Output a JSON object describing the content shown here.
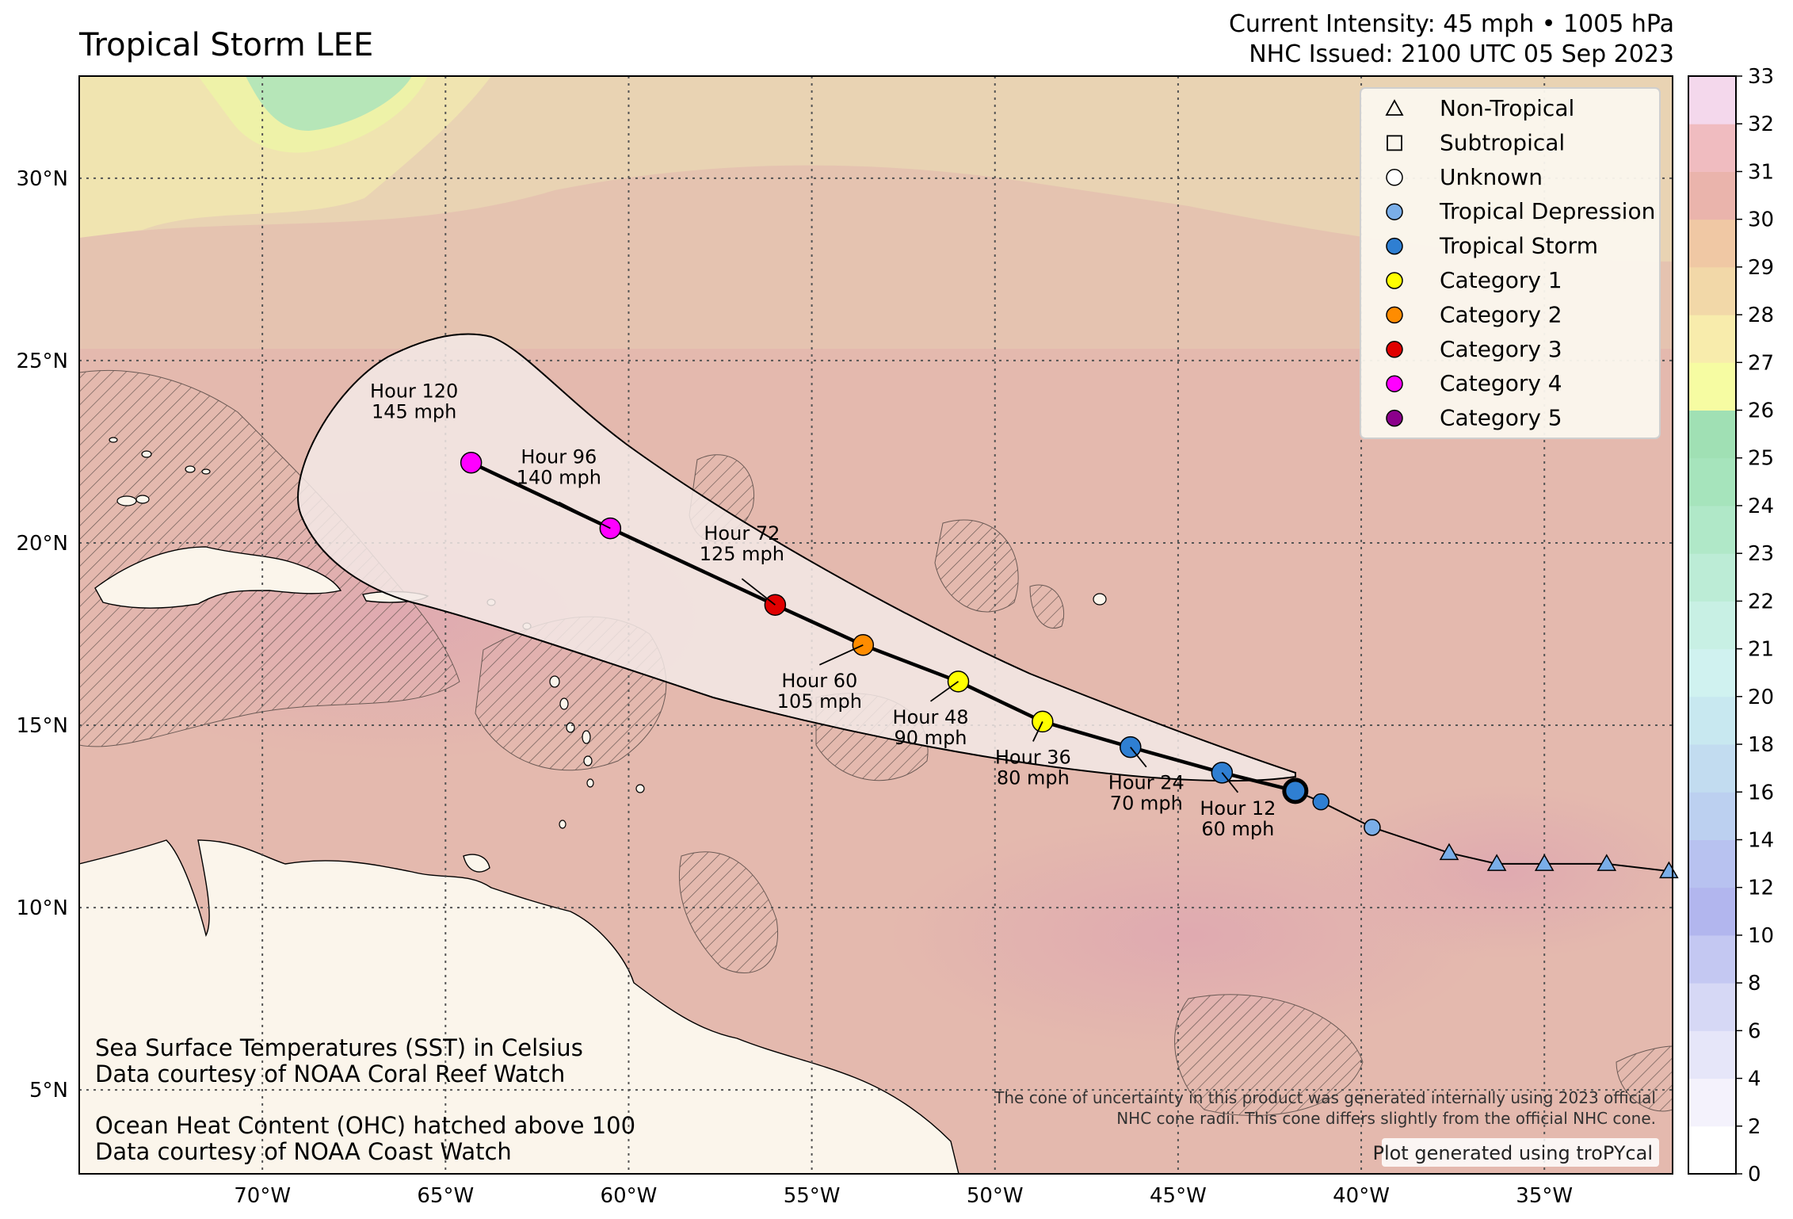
{
  "header": {
    "title": "Tropical Storm LEE",
    "intensity": "Current Intensity: 45 mph • 1005 hPa",
    "issued": "NHC Issued: 2100 UTC 05 Sep 2023"
  },
  "chart_data": {
    "type": "map",
    "projection": "PlateCarree",
    "extent": {
      "lon": [
        -75,
        -31.5
      ],
      "lat": [
        2.7,
        32.8
      ]
    },
    "gridlines": {
      "lon": [
        -70,
        -65,
        -60,
        -55,
        -50,
        -45,
        -40,
        -35
      ],
      "lat": [
        5,
        10,
        15,
        20,
        25,
        30
      ],
      "lon_labels": [
        "70°W",
        "65°W",
        "60°W",
        "55°W",
        "50°W",
        "45°W",
        "40°W",
        "35°W"
      ],
      "lat_labels": [
        "5°N",
        "10°N",
        "15°N",
        "20°N",
        "25°N",
        "30°N"
      ]
    },
    "past_track": [
      {
        "lon": -31.6,
        "lat": 11.0,
        "type": "Non-Tropical"
      },
      {
        "lon": -33.3,
        "lat": 11.2,
        "type": "Non-Tropical"
      },
      {
        "lon": -35.0,
        "lat": 11.2,
        "type": "Non-Tropical"
      },
      {
        "lon": -36.3,
        "lat": 11.2,
        "type": "Non-Tropical"
      },
      {
        "lon": -37.6,
        "lat": 11.5,
        "type": "Non-Tropical"
      },
      {
        "lon": -39.7,
        "lat": 12.2,
        "type": "Tropical Depression"
      },
      {
        "lon": -41.1,
        "lat": 12.9,
        "type": "Tropical Storm"
      }
    ],
    "current_position": {
      "lon": -41.8,
      "lat": 13.2
    },
    "forecast": [
      {
        "hour": "Hour 12",
        "wind": "60 mph",
        "lon": -43.8,
        "lat": 13.7,
        "category": "Tropical Storm"
      },
      {
        "hour": "Hour 24",
        "wind": "70 mph",
        "lon": -46.3,
        "lat": 14.4,
        "category": "Tropical Storm"
      },
      {
        "hour": "Hour 36",
        "wind": "80 mph",
        "lon": -48.7,
        "lat": 15.1,
        "category": "Category 1"
      },
      {
        "hour": "Hour 48",
        "wind": "90 mph",
        "lon": -51.0,
        "lat": 16.2,
        "category": "Category 1"
      },
      {
        "hour": "Hour 60",
        "wind": "105 mph",
        "lon": -53.6,
        "lat": 17.2,
        "category": "Category 2"
      },
      {
        "hour": "Hour 72",
        "wind": "125 mph",
        "lon": -56.0,
        "lat": 18.3,
        "category": "Category 3"
      },
      {
        "hour": "Hour 96",
        "wind": "140 mph",
        "lon": -60.5,
        "lat": 20.4,
        "category": "Category 4"
      },
      {
        "hour": "Hour 120",
        "wind": "145 mph",
        "lon": -64.3,
        "lat": 22.2,
        "category": "Category 4"
      }
    ],
    "legend": [
      {
        "label": "Non-Tropical",
        "marker": "triangle",
        "color": "none"
      },
      {
        "label": "Subtropical",
        "marker": "square",
        "color": "none"
      },
      {
        "label": "Unknown",
        "marker": "circle",
        "color": "none"
      },
      {
        "label": "Tropical Depression",
        "marker": "circle",
        "color": "#7aaee8"
      },
      {
        "label": "Tropical Storm",
        "marker": "circle",
        "color": "#2f7fd2"
      },
      {
        "label": "Category 1",
        "marker": "circle",
        "color": "#ffff00"
      },
      {
        "label": "Category 2",
        "marker": "circle",
        "color": "#ff8c00"
      },
      {
        "label": "Category 3",
        "marker": "circle",
        "color": "#e00000"
      },
      {
        "label": "Category 4",
        "marker": "circle",
        "color": "#ff00ff"
      },
      {
        "label": "Category 5",
        "marker": "circle",
        "color": "#8b008b"
      }
    ],
    "colorbar": {
      "ticks": [
        "0",
        "2",
        "4",
        "6",
        "8",
        "10",
        "12",
        "14",
        "16",
        "18",
        "20",
        "21",
        "22",
        "23",
        "24",
        "25",
        "26",
        "27",
        "28",
        "29",
        "30",
        "31",
        "32",
        "33"
      ],
      "colors": [
        "#ffffff",
        "#f4f2fc",
        "#e6e6f9",
        "#d6d8f5",
        "#c4c8f2",
        "#b2b6ee",
        "#b8c2f0",
        "#bcd0f0",
        "#c2dcf0",
        "#c8e8f0",
        "#d0f2f0",
        "#c8f0e4",
        "#bcecd6",
        "#b0e8c8",
        "#a6e4bc",
        "#a0e0b4",
        "#f6fca2",
        "#f8ecac",
        "#f2d8a8",
        "#f0c8a4",
        "#eab4ac",
        "#f0bcc0",
        "#f4d8ec"
      ]
    },
    "annotations": {
      "sst_title": "Sea Surface Temperatures (SST) in Celsius",
      "sst_source": "Data courtesy of NOAA Coral Reef Watch",
      "ohc_title": "Ocean Heat Content (OHC) hatched above 100",
      "ohc_source": "Data courtesy of NOAA Coast Watch",
      "cone_note_1": "The cone of uncertainty in this product was generated internally using 2023 official",
      "cone_note_2": "NHC cone radii. This cone differs slightly from the official NHC cone.",
      "credit": "Plot generated using troPYcal"
    }
  }
}
